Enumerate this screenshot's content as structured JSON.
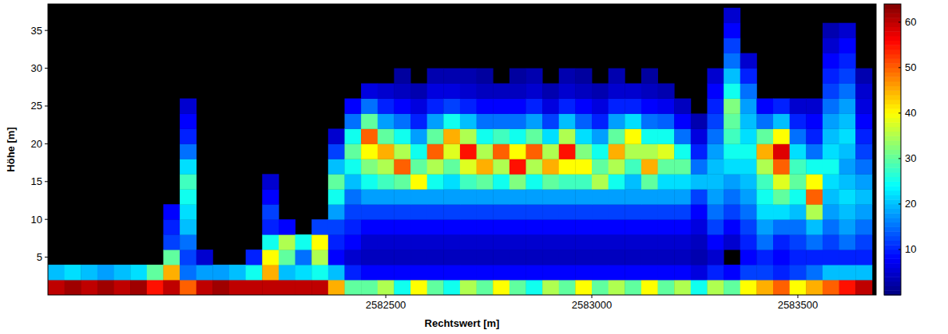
{
  "chart_data": {
    "type": "heatmap",
    "xlabel": "Rechtswert [m]",
    "ylabel": "Höhe [m]",
    "xlim": [
      2581680,
      2583690
    ],
    "ylim": [
      0,
      38.5
    ],
    "xticks": [
      2582500,
      2583000,
      2583500
    ],
    "yticks": [
      5,
      10,
      15,
      20,
      25,
      30,
      35
    ],
    "colorbar_range": [
      0,
      64
    ],
    "colorbar_ticks": [
      10,
      20,
      30,
      40,
      50,
      60
    ],
    "x": [
      2581700,
      2581740,
      2581780,
      2581820,
      2581860,
      2581900,
      2581940,
      2581980,
      2582020,
      2582060,
      2582100,
      2582140,
      2582180,
      2582220,
      2582260,
      2582300,
      2582340,
      2582380,
      2582420,
      2582460,
      2582500,
      2582540,
      2582580,
      2582620,
      2582660,
      2582700,
      2582740,
      2582780,
      2582820,
      2582860,
      2582900,
      2582940,
      2582980,
      2583020,
      2583060,
      2583100,
      2583140,
      2583180,
      2583220,
      2583260,
      2583300,
      2583340,
      2583380,
      2583420,
      2583460,
      2583500,
      2583540,
      2583580,
      2583620,
      2583660
    ],
    "y": [
      1,
      3,
      5,
      7,
      9,
      11,
      13,
      15,
      17,
      19,
      21,
      23,
      25,
      27,
      29,
      31,
      33,
      35,
      37
    ],
    "values": [
      [
        60,
        20,
        null,
        null,
        null,
        null,
        null,
        null,
        null,
        null,
        null,
        null,
        null,
        null,
        null,
        null,
        null,
        null,
        null
      ],
      [
        62,
        22,
        null,
        null,
        null,
        null,
        null,
        null,
        null,
        null,
        null,
        null,
        null,
        null,
        null,
        null,
        null,
        null,
        null
      ],
      [
        60,
        20,
        null,
        null,
        null,
        null,
        null,
        null,
        null,
        null,
        null,
        null,
        null,
        null,
        null,
        null,
        null,
        null,
        null
      ],
      [
        62,
        18,
        null,
        null,
        null,
        null,
        null,
        null,
        null,
        null,
        null,
        null,
        null,
        null,
        null,
        null,
        null,
        null,
        null
      ],
      [
        60,
        20,
        null,
        null,
        null,
        null,
        null,
        null,
        null,
        null,
        null,
        null,
        null,
        null,
        null,
        null,
        null,
        null,
        null
      ],
      [
        62,
        22,
        null,
        null,
        null,
        null,
        null,
        null,
        null,
        null,
        null,
        null,
        null,
        null,
        null,
        null,
        null,
        null,
        null
      ],
      [
        55,
        30,
        null,
        null,
        null,
        null,
        null,
        null,
        null,
        null,
        null,
        null,
        null,
        null,
        null,
        null,
        null,
        null,
        null
      ],
      [
        60,
        45,
        30,
        12,
        10,
        8,
        null,
        null,
        null,
        null,
        null,
        null,
        null,
        null,
        null,
        null,
        null,
        null,
        null
      ],
      [
        50,
        15,
        12,
        15,
        20,
        22,
        25,
        28,
        22,
        15,
        10,
        8,
        5,
        null,
        null,
        null,
        null,
        null,
        null
      ],
      [
        60,
        18,
        5,
        null,
        null,
        null,
        null,
        null,
        null,
        null,
        null,
        null,
        null,
        null,
        null,
        null,
        null,
        null,
        null
      ],
      [
        62,
        18,
        null,
        null,
        null,
        null,
        null,
        null,
        null,
        null,
        null,
        null,
        null,
        null,
        null,
        null,
        null,
        null,
        null
      ],
      [
        60,
        20,
        null,
        null,
        null,
        null,
        null,
        null,
        null,
        null,
        null,
        null,
        null,
        null,
        null,
        null,
        null,
        null,
        null
      ],
      [
        60,
        25,
        10,
        null,
        null,
        null,
        null,
        null,
        null,
        null,
        null,
        null,
        null,
        null,
        null,
        null,
        null,
        null,
        null
      ],
      [
        60,
        45,
        40,
        25,
        10,
        12,
        8,
        5,
        null,
        null,
        null,
        null,
        null,
        null,
        null,
        null,
        null,
        null,
        null
      ],
      [
        60,
        20,
        30,
        35,
        8,
        null,
        null,
        null,
        null,
        null,
        null,
        null,
        null,
        null,
        null,
        null,
        null,
        null,
        null
      ],
      [
        60,
        22,
        15,
        25,
        null,
        null,
        null,
        null,
        null,
        null,
        null,
        null,
        null,
        null,
        null,
        null,
        null,
        null,
        null
      ],
      [
        60,
        25,
        35,
        40,
        12,
        null,
        null,
        null,
        null,
        null,
        null,
        null,
        null,
        null,
        null,
        null,
        null,
        null,
        null
      ],
      [
        45,
        20,
        8,
        10,
        12,
        18,
        25,
        30,
        20,
        12,
        5,
        null,
        null,
        null,
        null,
        null,
        null,
        null,
        null
      ],
      [
        30,
        10,
        5,
        8,
        10,
        12,
        15,
        20,
        25,
        30,
        25,
        15,
        8,
        null,
        null,
        null,
        null,
        null,
        null
      ],
      [
        30,
        8,
        4,
        5,
        8,
        12,
        18,
        25,
        32,
        40,
        50,
        30,
        15,
        6,
        null,
        null,
        null,
        null,
        null
      ],
      [
        35,
        8,
        4,
        5,
        8,
        12,
        18,
        28,
        35,
        45,
        30,
        18,
        10,
        5,
        null,
        null,
        null,
        null,
        null
      ],
      [
        25,
        8,
        4,
        5,
        8,
        12,
        18,
        30,
        50,
        35,
        25,
        15,
        8,
        4,
        2,
        null,
        null,
        null,
        null
      ],
      [
        40,
        8,
        4,
        5,
        8,
        12,
        18,
        40,
        30,
        25,
        18,
        10,
        6,
        3,
        null,
        null,
        null,
        null,
        null
      ],
      [
        30,
        8,
        4,
        5,
        8,
        12,
        18,
        25,
        35,
        50,
        30,
        18,
        10,
        6,
        3,
        null,
        null,
        null,
        null
      ],
      [
        25,
        8,
        4,
        5,
        8,
        12,
        18,
        22,
        30,
        38,
        45,
        25,
        12,
        6,
        3,
        null,
        null,
        null,
        null
      ],
      [
        35,
        8,
        4,
        5,
        8,
        12,
        18,
        28,
        38,
        55,
        35,
        20,
        10,
        5,
        3,
        null,
        null,
        null,
        null
      ],
      [
        30,
        8,
        4,
        5,
        8,
        12,
        18,
        30,
        45,
        35,
        25,
        15,
        8,
        4,
        2,
        null,
        null,
        null,
        null
      ],
      [
        40,
        8,
        4,
        5,
        8,
        12,
        18,
        25,
        35,
        50,
        28,
        15,
        8,
        4,
        null,
        null,
        null,
        null,
        null
      ],
      [
        30,
        8,
        4,
        5,
        8,
        12,
        18,
        32,
        55,
        40,
        25,
        15,
        8,
        4,
        2,
        null,
        null,
        null,
        null
      ],
      [
        25,
        8,
        4,
        5,
        8,
        12,
        18,
        25,
        35,
        50,
        30,
        18,
        10,
        5,
        3,
        null,
        null,
        null,
        null
      ],
      [
        35,
        8,
        4,
        5,
        8,
        12,
        18,
        30,
        45,
        35,
        22,
        12,
        6,
        3,
        null,
        null,
        null,
        null,
        null
      ],
      [
        30,
        8,
        4,
        5,
        8,
        12,
        18,
        28,
        40,
        55,
        35,
        20,
        10,
        5,
        3,
        null,
        null,
        null,
        null
      ],
      [
        40,
        8,
        4,
        5,
        8,
        12,
        18,
        28,
        40,
        32,
        22,
        14,
        8,
        4,
        2,
        null,
        null,
        null,
        null
      ],
      [
        30,
        8,
        4,
        5,
        8,
        12,
        18,
        35,
        30,
        25,
        18,
        10,
        6,
        3,
        null,
        null,
        null,
        null,
        null
      ],
      [
        35,
        8,
        4,
        5,
        8,
        12,
        18,
        25,
        35,
        45,
        30,
        18,
        10,
        5,
        3,
        null,
        null,
        null,
        null
      ],
      [
        30,
        8,
        4,
        5,
        8,
        12,
        18,
        20,
        28,
        35,
        40,
        22,
        10,
        5,
        null,
        null,
        null,
        null,
        null
      ],
      [
        40,
        8,
        4,
        5,
        8,
        12,
        18,
        30,
        45,
        35,
        25,
        15,
        8,
        4,
        2,
        null,
        null,
        null,
        null
      ],
      [
        30,
        8,
        4,
        5,
        8,
        12,
        18,
        22,
        30,
        38,
        25,
        14,
        7,
        3,
        null,
        null,
        null,
        null,
        null
      ],
      [
        35,
        8,
        4,
        5,
        8,
        12,
        18,
        22,
        30,
        25,
        15,
        8,
        4,
        null,
        null,
        null,
        null,
        null,
        null
      ],
      [
        25,
        6,
        3,
        4,
        6,
        8,
        12,
        20,
        15,
        10,
        6,
        3,
        null,
        null,
        null,
        null,
        null,
        null,
        null
      ],
      [
        35,
        10,
        5,
        8,
        12,
        15,
        18,
        20,
        20,
        18,
        15,
        12,
        10,
        8,
        5,
        null,
        null,
        null,
        null
      ],
      [
        30,
        8,
        null,
        5,
        8,
        12,
        15,
        18,
        22,
        25,
        28,
        30,
        32,
        25,
        20,
        15,
        12,
        8,
        5
      ],
      [
        40,
        12,
        8,
        10,
        12,
        15,
        18,
        20,
        22,
        25,
        22,
        20,
        18,
        15,
        10,
        5,
        null,
        null,
        null
      ],
      [
        45,
        12,
        10,
        15,
        18,
        22,
        25,
        28,
        35,
        45,
        30,
        15,
        8,
        null,
        null,
        null,
        null,
        null,
        null
      ],
      [
        50,
        10,
        8,
        10,
        15,
        22,
        30,
        38,
        50,
        58,
        40,
        20,
        10,
        null,
        null,
        null,
        null,
        null,
        null
      ],
      [
        40,
        12,
        10,
        12,
        15,
        20,
        25,
        30,
        28,
        22,
        15,
        10,
        5,
        null,
        null,
        null,
        null,
        null,
        null
      ],
      [
        45,
        15,
        10,
        15,
        20,
        35,
        50,
        40,
        25,
        15,
        10,
        8,
        5,
        null,
        null,
        null,
        null,
        null,
        null
      ],
      [
        50,
        20,
        10,
        12,
        15,
        18,
        20,
        22,
        25,
        22,
        20,
        18,
        15,
        12,
        10,
        8,
        5,
        3,
        null
      ],
      [
        55,
        20,
        10,
        15,
        18,
        20,
        22,
        20,
        18,
        20,
        22,
        20,
        18,
        15,
        12,
        10,
        8,
        5,
        null
      ],
      [
        60,
        20,
        10,
        12,
        15,
        18,
        20,
        18,
        15,
        12,
        10,
        8,
        6,
        5,
        3,
        null,
        null,
        null,
        null
      ]
    ]
  }
}
